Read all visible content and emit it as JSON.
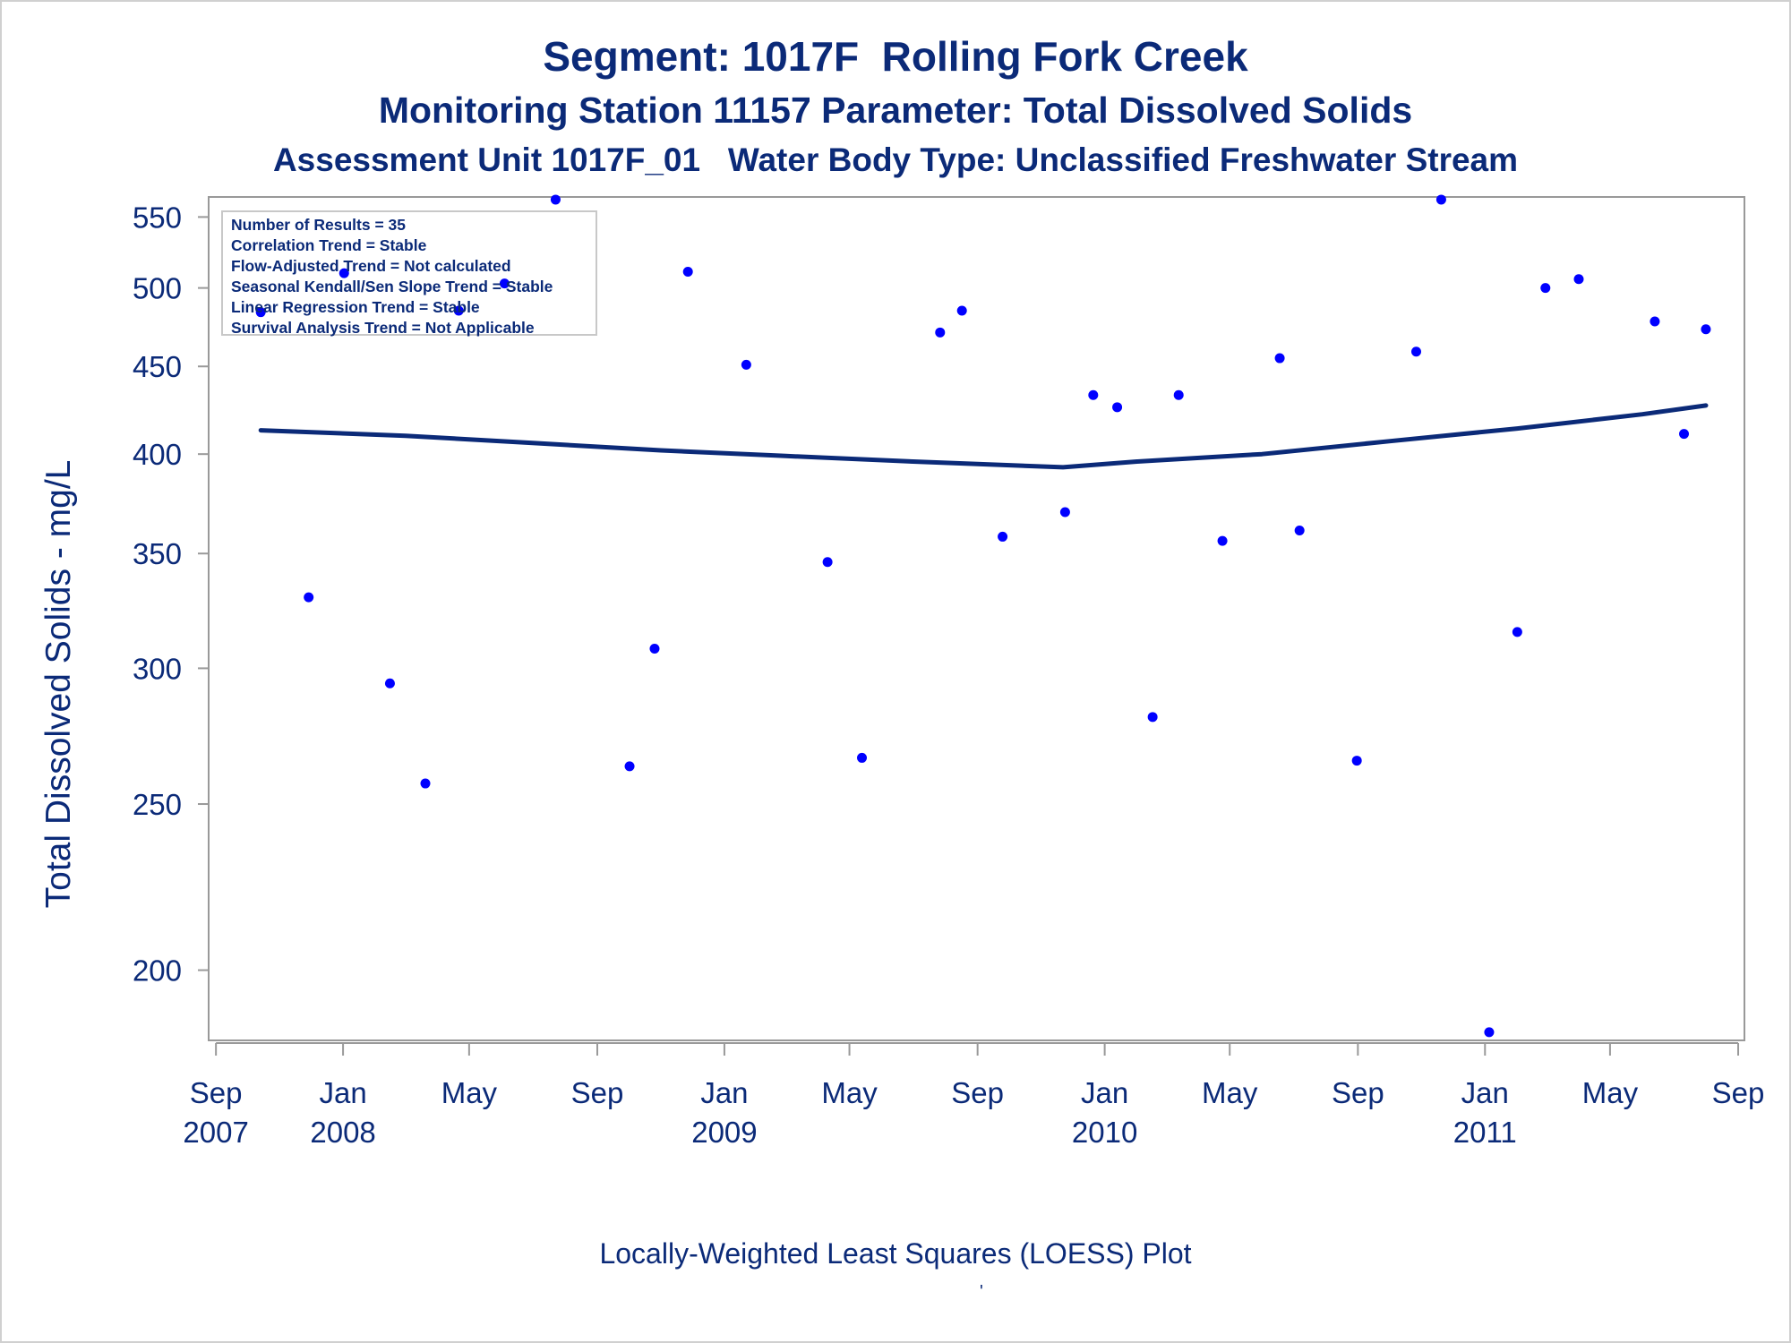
{
  "titles": {
    "line1": "Segment: 1017F  Rolling Fork Creek",
    "line2": "Monitoring Station 11157 Parameter: Total Dissolved Solids",
    "line3": "Assessment Unit 1017F_01   Water Body Type: Unclassified Freshwater Stream"
  },
  "footnote": "Locally-Weighted Least Squares (LOESS) Plot",
  "footnote_mark": "'",
  "stats": [
    "Number of Results = 35",
    "Correlation Trend = Stable",
    "Flow-Adjusted Trend = Not calculated",
    "Seasonal Kendall/Sen Slope Trend = Stable",
    "Linear Regression Trend = Stable",
    "Survival Analysis Trend = Not Applicable"
  ],
  "colors": {
    "text": "#0b2a78",
    "points": "#0000ff",
    "line": "#0b2a78",
    "axis": "#999999"
  },
  "chart_data": {
    "type": "scatter",
    "title": "Segment: 1017F  Rolling Fork Creek",
    "ylabel": "Total Dissolved Solids - mg/L",
    "xlabel": "",
    "y_scale": "log",
    "ylim": [
      182,
      565
    ],
    "xlim": [
      "2007-08-25",
      "2011-09-07"
    ],
    "y_ticks": [
      200,
      250,
      300,
      350,
      400,
      450,
      500,
      550
    ],
    "x_ticks": [
      {
        "date": "2007-09-01",
        "month": "Sep",
        "year": "2007"
      },
      {
        "date": "2008-01-01",
        "month": "Jan",
        "year": "2008"
      },
      {
        "date": "2008-05-01",
        "month": "May",
        "year": ""
      },
      {
        "date": "2008-09-01",
        "month": "Sep",
        "year": ""
      },
      {
        "date": "2009-01-01",
        "month": "Jan",
        "year": "2009"
      },
      {
        "date": "2009-05-01",
        "month": "May",
        "year": ""
      },
      {
        "date": "2009-09-01",
        "month": "Sep",
        "year": ""
      },
      {
        "date": "2010-01-01",
        "month": "Jan",
        "year": "2010"
      },
      {
        "date": "2010-05-01",
        "month": "May",
        "year": ""
      },
      {
        "date": "2010-09-01",
        "month": "Sep",
        "year": ""
      },
      {
        "date": "2011-01-01",
        "month": "Jan",
        "year": "2011"
      },
      {
        "date": "2011-05-01",
        "month": "May",
        "year": ""
      },
      {
        "date": "2011-09-01",
        "month": "Sep",
        "year": ""
      }
    ],
    "grid": false,
    "series": [
      {
        "marker": "dot",
        "points": [
          {
            "x": "2007-10-14",
            "y": 484
          },
          {
            "x": "2007-11-29",
            "y": 330
          },
          {
            "x": "2008-01-02",
            "y": 510
          },
          {
            "x": "2008-02-15",
            "y": 294
          },
          {
            "x": "2008-03-20",
            "y": 257
          },
          {
            "x": "2008-04-21",
            "y": 485
          },
          {
            "x": "2008-06-04",
            "y": 503
          },
          {
            "x": "2008-07-23",
            "y": 563
          },
          {
            "x": "2008-10-02",
            "y": 263
          },
          {
            "x": "2008-10-26",
            "y": 308
          },
          {
            "x": "2008-11-27",
            "y": 511
          },
          {
            "x": "2009-01-22",
            "y": 451
          },
          {
            "x": "2009-04-10",
            "y": 346
          },
          {
            "x": "2009-05-13",
            "y": 266
          },
          {
            "x": "2009-07-27",
            "y": 471
          },
          {
            "x": "2009-08-17",
            "y": 485
          },
          {
            "x": "2009-09-25",
            "y": 358
          },
          {
            "x": "2009-11-24",
            "y": 370
          },
          {
            "x": "2009-12-21",
            "y": 433
          },
          {
            "x": "2010-01-13",
            "y": 426
          },
          {
            "x": "2010-02-16",
            "y": 281
          },
          {
            "x": "2010-03-13",
            "y": 433
          },
          {
            "x": "2010-04-24",
            "y": 356
          },
          {
            "x": "2010-06-18",
            "y": 455
          },
          {
            "x": "2010-07-07",
            "y": 361
          },
          {
            "x": "2010-08-31",
            "y": 265
          },
          {
            "x": "2010-10-27",
            "y": 459
          },
          {
            "x": "2010-11-20",
            "y": 563
          },
          {
            "x": "2011-01-05",
            "y": 184
          },
          {
            "x": "2011-02-01",
            "y": 315
          },
          {
            "x": "2011-02-28",
            "y": 500
          },
          {
            "x": "2011-04-01",
            "y": 506
          },
          {
            "x": "2011-06-13",
            "y": 478
          },
          {
            "x": "2011-07-11",
            "y": 411
          },
          {
            "x": "2011-08-01",
            "y": 473
          }
        ]
      },
      {
        "marker": "line",
        "points": [
          {
            "x": "2007-10-14",
            "y": 413
          },
          {
            "x": "2008-03-01",
            "y": 410
          },
          {
            "x": "2008-07-01",
            "y": 406
          },
          {
            "x": "2008-11-01",
            "y": 402
          },
          {
            "x": "2009-03-01",
            "y": 399
          },
          {
            "x": "2009-07-01",
            "y": 396
          },
          {
            "x": "2009-11-22",
            "y": 393
          },
          {
            "x": "2010-02-01",
            "y": 396
          },
          {
            "x": "2010-06-01",
            "y": 400
          },
          {
            "x": "2010-10-01",
            "y": 407
          },
          {
            "x": "2011-02-01",
            "y": 414
          },
          {
            "x": "2011-06-01",
            "y": 422
          },
          {
            "x": "2011-08-01",
            "y": 427
          }
        ]
      }
    ]
  }
}
